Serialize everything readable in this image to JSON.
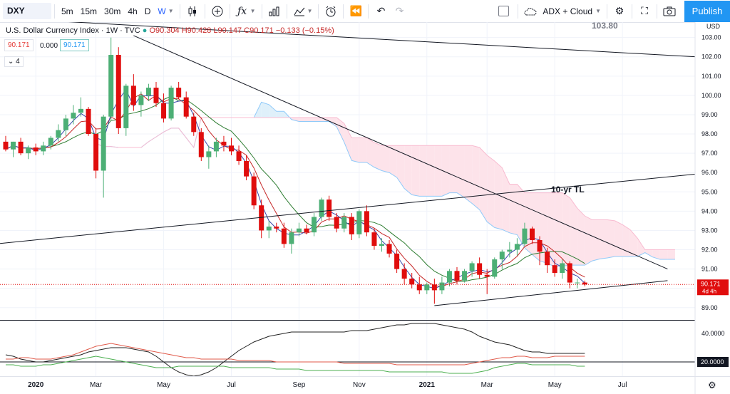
{
  "toolbar": {
    "symbol": "DXY",
    "intervals": [
      "5m",
      "15m",
      "30m",
      "4h",
      "D",
      "W"
    ],
    "active_interval": "W",
    "study_label": "ADX + Cloud",
    "publish_label": "Publish"
  },
  "legend": {
    "title": "U.S. Dollar Currency Index · 1W · TVC",
    "ohlc": "O90.304 H90.428 L90.147 C90.171 −0.133 (−0.15%)",
    "box_close": "90.171",
    "box_zero": "0.000",
    "box_ma": "90.171",
    "collapse": "4"
  },
  "price_scale": {
    "currency": "USD",
    "top_price": "103.80",
    "current_price": "90.171",
    "current_time": "4d 4h"
  },
  "colors": {
    "up": "#4caf75",
    "down": "#e00d0d",
    "cloud_fill_bear": "#fde3ea",
    "cloud_fill_bull": "#dff0fa",
    "ma_fast": "#3949ab",
    "ma_slow": "#c62828",
    "ma_mid": "#2e7d32",
    "adx": "#212121",
    "plus_di": "#e05a4a",
    "minus_di": "#4caf50",
    "accent": "#2196f3"
  },
  "annotation": "10-yr TL",
  "chart_data": [
    {
      "type": "candlestick",
      "title": "U.S. Dollar Currency Index · 1W · TVC",
      "ylim": [
        88.4,
        103.8
      ],
      "yticks": [
        89,
        90,
        91,
        92,
        93,
        94,
        95,
        96,
        97,
        98,
        99,
        100,
        101,
        102,
        103
      ],
      "xticks": [
        {
          "label": "2020",
          "at": "2020-01-06"
        },
        {
          "label": "Mar",
          "at": "2020-03-02"
        },
        {
          "label": "May",
          "at": "2020-05-04"
        },
        {
          "label": "Jul",
          "at": "2020-07-06"
        },
        {
          "label": "Sep",
          "at": "2020-09-07"
        },
        {
          "label": "Nov",
          "at": "2020-11-02"
        },
        {
          "label": "2021",
          "at": "2021-01-04"
        },
        {
          "label": "Mar",
          "at": "2021-03-01"
        },
        {
          "label": "May",
          "at": "2021-05-03"
        },
        {
          "label": "Jul",
          "at": "2021-07-05"
        }
      ],
      "candles": [
        {
          "o": 97.6,
          "h": 97.9,
          "l": 97.1,
          "c": 97.2
        },
        {
          "o": 97.2,
          "h": 97.6,
          "l": 96.8,
          "c": 97.6
        },
        {
          "o": 97.6,
          "h": 97.8,
          "l": 96.9,
          "c": 97.0
        },
        {
          "o": 97.0,
          "h": 97.4,
          "l": 96.7,
          "c": 97.3
        },
        {
          "o": 97.3,
          "h": 97.5,
          "l": 96.9,
          "c": 97.1
        },
        {
          "o": 97.1,
          "h": 97.6,
          "l": 96.9,
          "c": 97.4
        },
        {
          "o": 97.4,
          "h": 97.9,
          "l": 97.2,
          "c": 97.8
        },
        {
          "o": 97.8,
          "h": 98.5,
          "l": 97.6,
          "c": 98.2
        },
        {
          "o": 98.2,
          "h": 99.0,
          "l": 97.9,
          "c": 98.8
        },
        {
          "o": 98.8,
          "h": 99.5,
          "l": 98.5,
          "c": 99.1
        },
        {
          "o": 99.1,
          "h": 99.9,
          "l": 98.9,
          "c": 99.3
        },
        {
          "o": 99.3,
          "h": 99.4,
          "l": 97.9,
          "c": 98.0
        },
        {
          "o": 98.0,
          "h": 98.3,
          "l": 95.7,
          "c": 96.1
        },
        {
          "o": 96.1,
          "h": 99.0,
          "l": 94.7,
          "c": 98.9
        },
        {
          "o": 98.9,
          "h": 103.0,
          "l": 98.7,
          "c": 102.1
        },
        {
          "o": 102.1,
          "h": 102.5,
          "l": 98.0,
          "c": 98.3
        },
        {
          "o": 98.3,
          "h": 100.6,
          "l": 97.9,
          "c": 100.5
        },
        {
          "o": 100.5,
          "h": 101.1,
          "l": 99.2,
          "c": 99.5
        },
        {
          "o": 99.5,
          "h": 100.2,
          "l": 98.9,
          "c": 100.0
        },
        {
          "o": 100.0,
          "h": 100.6,
          "l": 99.7,
          "c": 100.4
        },
        {
          "o": 100.4,
          "h": 100.7,
          "l": 99.4,
          "c": 99.6
        },
        {
          "o": 99.6,
          "h": 100.1,
          "l": 98.6,
          "c": 98.8
        },
        {
          "o": 98.8,
          "h": 100.5,
          "l": 98.7,
          "c": 100.4
        },
        {
          "o": 100.4,
          "h": 100.7,
          "l": 99.8,
          "c": 99.9
        },
        {
          "o": 99.9,
          "h": 100.2,
          "l": 98.8,
          "c": 98.9
        },
        {
          "o": 98.9,
          "h": 99.1,
          "l": 97.9,
          "c": 98.1
        },
        {
          "o": 98.1,
          "h": 98.3,
          "l": 96.6,
          "c": 96.8
        },
        {
          "o": 96.8,
          "h": 97.4,
          "l": 96.2,
          "c": 97.1
        },
        {
          "o": 97.1,
          "h": 97.8,
          "l": 96.8,
          "c": 97.6
        },
        {
          "o": 97.6,
          "h": 97.9,
          "l": 97.1,
          "c": 97.4
        },
        {
          "o": 97.4,
          "h": 97.8,
          "l": 96.9,
          "c": 97.1
        },
        {
          "o": 97.1,
          "h": 97.4,
          "l": 96.4,
          "c": 96.6
        },
        {
          "o": 96.6,
          "h": 96.9,
          "l": 95.6,
          "c": 95.8
        },
        {
          "o": 95.8,
          "h": 96.0,
          "l": 94.1,
          "c": 94.3
        },
        {
          "o": 94.3,
          "h": 94.6,
          "l": 92.6,
          "c": 93.0
        },
        {
          "o": 93.0,
          "h": 93.5,
          "l": 92.6,
          "c": 93.2
        },
        {
          "o": 93.2,
          "h": 93.4,
          "l": 92.9,
          "c": 93.1
        },
        {
          "o": 93.1,
          "h": 93.4,
          "l": 92.1,
          "c": 92.3
        },
        {
          "o": 92.3,
          "h": 93.1,
          "l": 91.8,
          "c": 92.9
        },
        {
          "o": 92.9,
          "h": 93.4,
          "l": 92.7,
          "c": 93.1
        },
        {
          "o": 93.1,
          "h": 93.3,
          "l": 92.8,
          "c": 92.9
        },
        {
          "o": 92.9,
          "h": 93.9,
          "l": 92.7,
          "c": 93.7
        },
        {
          "o": 93.7,
          "h": 94.7,
          "l": 93.5,
          "c": 94.6
        },
        {
          "o": 94.6,
          "h": 94.8,
          "l": 93.5,
          "c": 93.7
        },
        {
          "o": 93.7,
          "h": 93.9,
          "l": 92.9,
          "c": 93.1
        },
        {
          "o": 93.1,
          "h": 93.9,
          "l": 92.9,
          "c": 93.7
        },
        {
          "o": 93.7,
          "h": 93.9,
          "l": 92.5,
          "c": 92.8
        },
        {
          "o": 92.8,
          "h": 94.1,
          "l": 92.6,
          "c": 94.0
        },
        {
          "o": 94.0,
          "h": 94.3,
          "l": 92.7,
          "c": 92.9
        },
        {
          "o": 92.9,
          "h": 93.1,
          "l": 92.0,
          "c": 92.2
        },
        {
          "o": 92.2,
          "h": 92.6,
          "l": 91.9,
          "c": 92.3
        },
        {
          "o": 92.3,
          "h": 92.5,
          "l": 91.6,
          "c": 91.8
        },
        {
          "o": 91.8,
          "h": 92.0,
          "l": 90.8,
          "c": 91.0
        },
        {
          "o": 91.0,
          "h": 91.3,
          "l": 90.2,
          "c": 90.5
        },
        {
          "o": 90.5,
          "h": 90.8,
          "l": 90.0,
          "c": 90.2
        },
        {
          "o": 90.2,
          "h": 90.6,
          "l": 89.7,
          "c": 89.9
        },
        {
          "o": 89.9,
          "h": 90.3,
          "l": 89.7,
          "c": 90.2
        },
        {
          "o": 90.2,
          "h": 90.5,
          "l": 89.2,
          "c": 89.9
        },
        {
          "o": 89.9,
          "h": 90.6,
          "l": 89.7,
          "c": 90.3
        },
        {
          "o": 90.3,
          "h": 91.0,
          "l": 90.1,
          "c": 90.9
        },
        {
          "o": 90.9,
          "h": 91.1,
          "l": 90.2,
          "c": 90.4
        },
        {
          "o": 90.4,
          "h": 91.0,
          "l": 90.3,
          "c": 90.9
        },
        {
          "o": 90.9,
          "h": 91.4,
          "l": 90.6,
          "c": 91.3
        },
        {
          "o": 91.3,
          "h": 91.6,
          "l": 90.5,
          "c": 90.7
        },
        {
          "o": 90.7,
          "h": 91.0,
          "l": 89.7,
          "c": 90.6
        },
        {
          "o": 90.6,
          "h": 91.6,
          "l": 90.5,
          "c": 91.5
        },
        {
          "o": 91.5,
          "h": 92.0,
          "l": 91.0,
          "c": 91.9
        },
        {
          "o": 91.9,
          "h": 92.4,
          "l": 91.6,
          "c": 92.0
        },
        {
          "o": 92.0,
          "h": 92.6,
          "l": 91.7,
          "c": 92.3
        },
        {
          "o": 92.3,
          "h": 93.4,
          "l": 92.2,
          "c": 93.1
        },
        {
          "o": 93.1,
          "h": 93.2,
          "l": 92.3,
          "c": 92.5
        },
        {
          "o": 92.5,
          "h": 92.7,
          "l": 91.2,
          "c": 91.9
        },
        {
          "o": 91.9,
          "h": 92.1,
          "l": 90.8,
          "c": 91.2
        },
        {
          "o": 91.2,
          "h": 91.5,
          "l": 90.6,
          "c": 90.8
        },
        {
          "o": 90.8,
          "h": 91.5,
          "l": 90.5,
          "c": 91.3
        },
        {
          "o": 91.3,
          "h": 91.4,
          "l": 90.0,
          "c": 90.3
        },
        {
          "o": 90.3,
          "h": 90.5,
          "l": 90.0,
          "c": 90.3
        },
        {
          "o": 90.3,
          "h": 90.4,
          "l": 90.1,
          "c": 90.2
        }
      ],
      "trendlines": [
        {
          "from": [
            0,
            104.0
          ],
          "to": [
            170,
            101.9
          ]
        },
        {
          "from": [
            -4,
            92.2
          ],
          "to": [
            170,
            96.1
          ]
        },
        {
          "from": [
            17,
            103.1
          ],
          "to": [
            88,
            91.0
          ]
        },
        {
          "from": [
            57,
            89.1
          ],
          "to": [
            88,
            90.4
          ]
        }
      ]
    },
    {
      "type": "line",
      "title": "ADX",
      "ylim": [
        10,
        49
      ],
      "yticks": [
        20,
        40
      ],
      "reference": 20,
      "series": [
        {
          "name": "ADX",
          "values": [
            25,
            24,
            22,
            21,
            20,
            20,
            21,
            22,
            23,
            24,
            25,
            27,
            28,
            29,
            30,
            30,
            30,
            29,
            28,
            27,
            24,
            20,
            16,
            13,
            11,
            10,
            11,
            13,
            16,
            20,
            24,
            28,
            31,
            34,
            36,
            38,
            39,
            40,
            41,
            41,
            41,
            41,
            41,
            41,
            41,
            41,
            42,
            42,
            42,
            43,
            44,
            45,
            46,
            46,
            47,
            47,
            47,
            47,
            46,
            45,
            44,
            43,
            41,
            38,
            36,
            34,
            33,
            32,
            30,
            28,
            27,
            27,
            26,
            26,
            26,
            26,
            26,
            26
          ]
        },
        {
          "name": "+DI",
          "values": [
            22,
            22,
            23,
            23,
            22,
            22,
            22,
            23,
            24,
            25,
            27,
            29,
            31,
            32,
            33,
            32,
            31,
            30,
            29,
            28,
            27,
            26,
            25,
            24,
            23,
            23,
            22,
            22,
            22,
            22,
            22,
            21,
            21,
            21,
            21,
            21,
            20,
            20,
            20,
            20,
            20,
            20,
            20,
            20,
            20,
            19,
            19,
            19,
            19,
            19,
            19,
            19,
            18,
            18,
            18,
            18,
            18,
            18,
            18,
            18,
            18,
            18,
            19,
            20,
            21,
            22,
            23,
            23,
            24,
            24,
            23,
            23,
            23,
            24,
            24,
            24,
            24,
            24
          ]
        },
        {
          "name": "-DI",
          "values": [
            18,
            18,
            17,
            17,
            17,
            18,
            18,
            19,
            20,
            21,
            22,
            23,
            24,
            23,
            22,
            21,
            20,
            19,
            18,
            17,
            16,
            16,
            16,
            17,
            17,
            17,
            17,
            17,
            17,
            17,
            16,
            16,
            16,
            16,
            16,
            16,
            15,
            15,
            15,
            15,
            14,
            14,
            14,
            14,
            14,
            14,
            14,
            14,
            14,
            14,
            14,
            13,
            13,
            13,
            13,
            13,
            13,
            13,
            13,
            12,
            12,
            12,
            12,
            13,
            14,
            16,
            17,
            18,
            19,
            19,
            18,
            18,
            18,
            18,
            18,
            18,
            17,
            17
          ]
        }
      ]
    }
  ]
}
